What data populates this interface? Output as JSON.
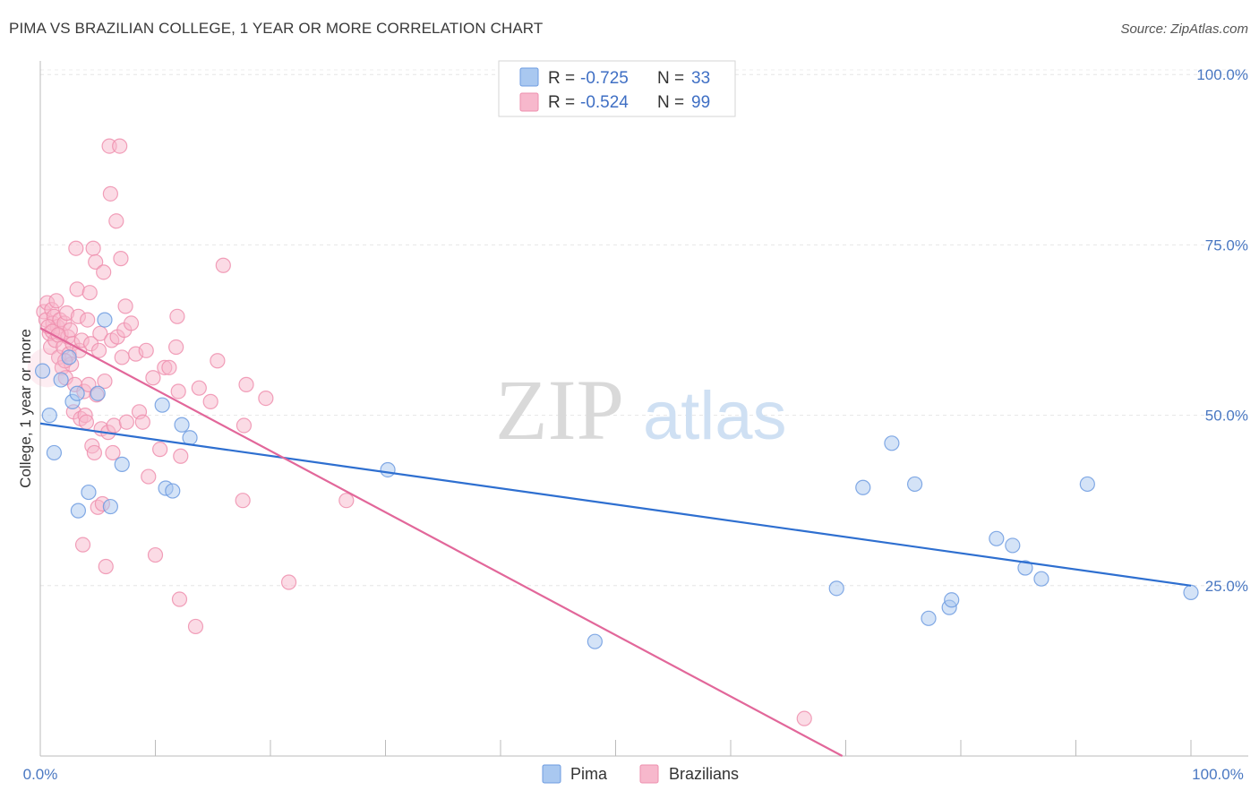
{
  "header": {
    "title": "PIMA VS BRAZILIAN COLLEGE, 1 YEAR OR MORE CORRELATION CHART",
    "source": "Source: ZipAtlas.com"
  },
  "watermark": {
    "zip": "ZIP",
    "atlas": "atlas"
  },
  "legend": {
    "rows": [
      {
        "r_label": "R =",
        "r_value": "-0.725",
        "n_label": "N =",
        "n_value": "33"
      },
      {
        "r_label": "R =",
        "r_value": "-0.524",
        "n_label": "N =",
        "n_value": "99"
      }
    ]
  },
  "colors": {
    "pima_fill": "#a9c8f0",
    "pima_stroke": "#6d9be0",
    "pima_line": "#2e6fd0",
    "braz_fill": "#f7b8cc",
    "braz_stroke": "#ee8fae",
    "braz_line": "#e2679a"
  },
  "chart_data": {
    "type": "scatter",
    "title": "PIMA VS BRAZILIAN COLLEGE, 1 YEAR OR MORE CORRELATION CHART",
    "xlabel": "",
    "ylabel": "College, 1 year or more",
    "xlim": [
      0,
      100
    ],
    "ylim": [
      0,
      102
    ],
    "x_tick_labels": [
      "0.0%",
      "100.0%"
    ],
    "y_ticks": [
      25,
      50,
      75,
      100
    ],
    "y_tick_labels": [
      "25.0%",
      "50.0%",
      "75.0%",
      "100.0%"
    ],
    "legend_labels": [
      "Pima",
      "Brazilians"
    ],
    "series": [
      {
        "name": "Pima",
        "r": -0.725,
        "n": 33,
        "trend": {
          "x": [
            0,
            100
          ],
          "y": [
            48.8,
            25.0
          ]
        },
        "points": [
          [
            0.2,
            56.5
          ],
          [
            0.8,
            50.0
          ],
          [
            1.2,
            44.5
          ],
          [
            1.8,
            55.2
          ],
          [
            2.5,
            58.5
          ],
          [
            2.8,
            52.0
          ],
          [
            3.2,
            53.2
          ],
          [
            3.3,
            36.0
          ],
          [
            4.2,
            38.7
          ],
          [
            5.0,
            53.2
          ],
          [
            5.6,
            64.0
          ],
          [
            6.1,
            36.6
          ],
          [
            7.1,
            42.8
          ],
          [
            10.6,
            51.5
          ],
          [
            10.9,
            39.3
          ],
          [
            11.5,
            38.9
          ],
          [
            12.3,
            48.6
          ],
          [
            13.0,
            46.7
          ],
          [
            30.2,
            42.0
          ],
          [
            48.2,
            16.8
          ],
          [
            69.2,
            24.6
          ],
          [
            71.5,
            39.4
          ],
          [
            74.0,
            45.9
          ],
          [
            76.0,
            39.9
          ],
          [
            77.2,
            20.2
          ],
          [
            79.0,
            21.8
          ],
          [
            79.2,
            22.9
          ],
          [
            83.1,
            31.9
          ],
          [
            84.5,
            30.9
          ],
          [
            85.6,
            27.6
          ],
          [
            87.0,
            26.0
          ],
          [
            91.0,
            39.9
          ],
          [
            100.0,
            24.0
          ]
        ]
      },
      {
        "name": "Brazilians",
        "r": -0.524,
        "n": 99,
        "trend": {
          "x": [
            0,
            69.7
          ],
          "y": [
            62.8,
            0
          ]
        },
        "points": [
          [
            0.3,
            65.2
          ],
          [
            0.5,
            64.0
          ],
          [
            0.6,
            66.5
          ],
          [
            0.8,
            62.0
          ],
          [
            0.9,
            60.0
          ],
          [
            1.0,
            65.5
          ],
          [
            1.1,
            63.5
          ],
          [
            1.2,
            64.5
          ],
          [
            1.3,
            61.0
          ],
          [
            1.4,
            66.8
          ],
          [
            1.5,
            63.0
          ],
          [
            1.6,
            58.5
          ],
          [
            1.7,
            64.0
          ],
          [
            1.8,
            62.0
          ],
          [
            1.9,
            57.0
          ],
          [
            2.0,
            60.0
          ],
          [
            2.1,
            63.5
          ],
          [
            2.2,
            55.5
          ],
          [
            2.3,
            65.0
          ],
          [
            2.4,
            61.5
          ],
          [
            2.5,
            59.0
          ],
          [
            2.6,
            62.5
          ],
          [
            2.7,
            57.5
          ],
          [
            2.8,
            60.5
          ],
          [
            2.9,
            50.5
          ],
          [
            3.0,
            54.5
          ],
          [
            3.1,
            74.5
          ],
          [
            3.2,
            68.5
          ],
          [
            3.3,
            64.5
          ],
          [
            3.4,
            59.5
          ],
          [
            3.5,
            49.5
          ],
          [
            3.6,
            61.0
          ],
          [
            3.7,
            31.0
          ],
          [
            3.8,
            53.5
          ],
          [
            3.9,
            50.0
          ],
          [
            4.0,
            49.0
          ],
          [
            4.1,
            64.0
          ],
          [
            4.2,
            54.5
          ],
          [
            4.3,
            68.0
          ],
          [
            4.4,
            60.5
          ],
          [
            4.5,
            45.5
          ],
          [
            4.6,
            74.5
          ],
          [
            4.7,
            44.5
          ],
          [
            4.8,
            72.5
          ],
          [
            4.9,
            53.0
          ],
          [
            5.0,
            36.5
          ],
          [
            5.1,
            59.5
          ],
          [
            5.2,
            62.0
          ],
          [
            5.3,
            48.0
          ],
          [
            5.4,
            37.0
          ],
          [
            5.5,
            71.0
          ],
          [
            5.6,
            55.0
          ],
          [
            5.7,
            27.8
          ],
          [
            5.9,
            47.5
          ],
          [
            6.0,
            89.5
          ],
          [
            6.1,
            82.5
          ],
          [
            6.2,
            61.0
          ],
          [
            6.3,
            44.5
          ],
          [
            6.4,
            48.5
          ],
          [
            6.6,
            78.5
          ],
          [
            6.7,
            61.5
          ],
          [
            6.9,
            89.5
          ],
          [
            7.0,
            73.0
          ],
          [
            7.1,
            58.5
          ],
          [
            7.3,
            62.5
          ],
          [
            7.4,
            66.0
          ],
          [
            7.5,
            49.0
          ],
          [
            7.9,
            63.5
          ],
          [
            8.3,
            59.0
          ],
          [
            8.6,
            50.5
          ],
          [
            8.9,
            49.0
          ],
          [
            9.2,
            59.5
          ],
          [
            9.4,
            41.0
          ],
          [
            9.8,
            55.5
          ],
          [
            10.0,
            29.5
          ],
          [
            10.4,
            45.0
          ],
          [
            10.8,
            57.0
          ],
          [
            11.2,
            57.0
          ],
          [
            11.8,
            60.0
          ],
          [
            11.9,
            64.5
          ],
          [
            12.0,
            53.5
          ],
          [
            12.1,
            23.0
          ],
          [
            12.2,
            44.0
          ],
          [
            13.5,
            19.0
          ],
          [
            13.8,
            54.0
          ],
          [
            14.8,
            52.0
          ],
          [
            15.4,
            58.0
          ],
          [
            15.9,
            72.0
          ],
          [
            17.6,
            37.5
          ],
          [
            17.7,
            48.5
          ],
          [
            17.9,
            54.5
          ],
          [
            19.6,
            52.5
          ],
          [
            21.6,
            25.5
          ],
          [
            26.6,
            37.5
          ],
          [
            66.4,
            5.5
          ],
          [
            0.7,
            63.0
          ],
          [
            1.05,
            62.3
          ],
          [
            1.55,
            61.8
          ],
          [
            2.15,
            58.0
          ]
        ]
      }
    ]
  }
}
